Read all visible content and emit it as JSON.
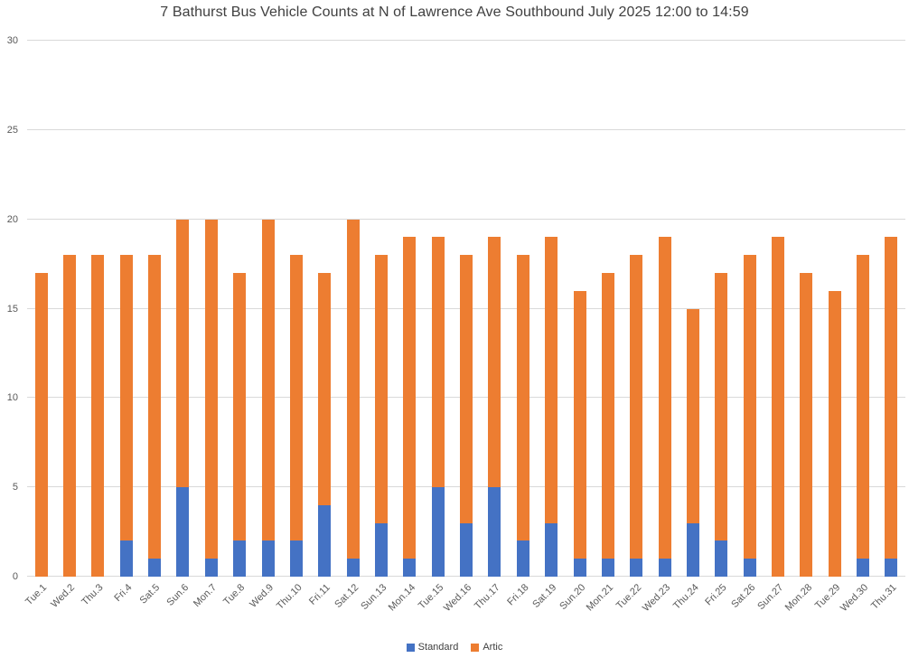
{
  "title": "7 Bathurst Bus Vehicle Counts at N of Lawrence Ave Southbound July 2025  12:00 to 14:59",
  "colors": {
    "standard": "#4472C4",
    "artic": "#ED7D31",
    "gridline": "#D9D9D9",
    "title_text": "#404040",
    "tick_text": "#595959"
  },
  "chart_data": {
    "type": "bar",
    "stacked": true,
    "title": "7 Bathurst Bus Vehicle Counts at N of Lawrence Ave Southbound July 2025  12:00 to 14:59",
    "xlabel": "",
    "ylabel": "",
    "ylim": [
      0,
      30
    ],
    "yticks": [
      0,
      5,
      10,
      15,
      20,
      25,
      30
    ],
    "grid": true,
    "legend_position": "bottom",
    "categories": [
      "Tue.1",
      "Wed.2",
      "Thu.3",
      "Fri.4",
      "Sat.5",
      "Sun.6",
      "Mon.7",
      "Tue.8",
      "Wed.9",
      "Thu.10",
      "Fri.11",
      "Sat.12",
      "Sun.13",
      "Mon.14",
      "Tue.15",
      "Wed.16",
      "Thu.17",
      "Fri.18",
      "Sat.19",
      "Sun.20",
      "Mon.21",
      "Tue.22",
      "Wed.23",
      "Thu.24",
      "Fri.25",
      "Sat.26",
      "Sun.27",
      "Mon.28",
      "Tue.29",
      "Wed.30",
      "Thu.31"
    ],
    "series": [
      {
        "name": "Standard",
        "color": "#4472C4",
        "values": [
          0,
          0,
          0,
          2,
          1,
          5,
          1,
          2,
          2,
          2,
          4,
          1,
          3,
          1,
          5,
          3,
          5,
          2,
          3,
          1,
          1,
          1,
          1,
          3,
          2,
          1,
          0,
          0,
          0,
          1,
          1
        ]
      },
      {
        "name": "Artic",
        "color": "#ED7D31",
        "values": [
          17,
          18,
          18,
          16,
          17,
          15,
          19,
          15,
          18,
          16,
          13,
          19,
          15,
          18,
          14,
          15,
          14,
          16,
          16,
          15,
          16,
          17,
          18,
          12,
          15,
          17,
          19,
          17,
          16,
          17,
          18
        ]
      }
    ],
    "totals": [
      17,
      18,
      18,
      18,
      18,
      20,
      20,
      17,
      20,
      18,
      17,
      20,
      18,
      19,
      19,
      18,
      19,
      18,
      19,
      16,
      17,
      18,
      19,
      15,
      17,
      18,
      19,
      17,
      16,
      18,
      19
    ]
  }
}
